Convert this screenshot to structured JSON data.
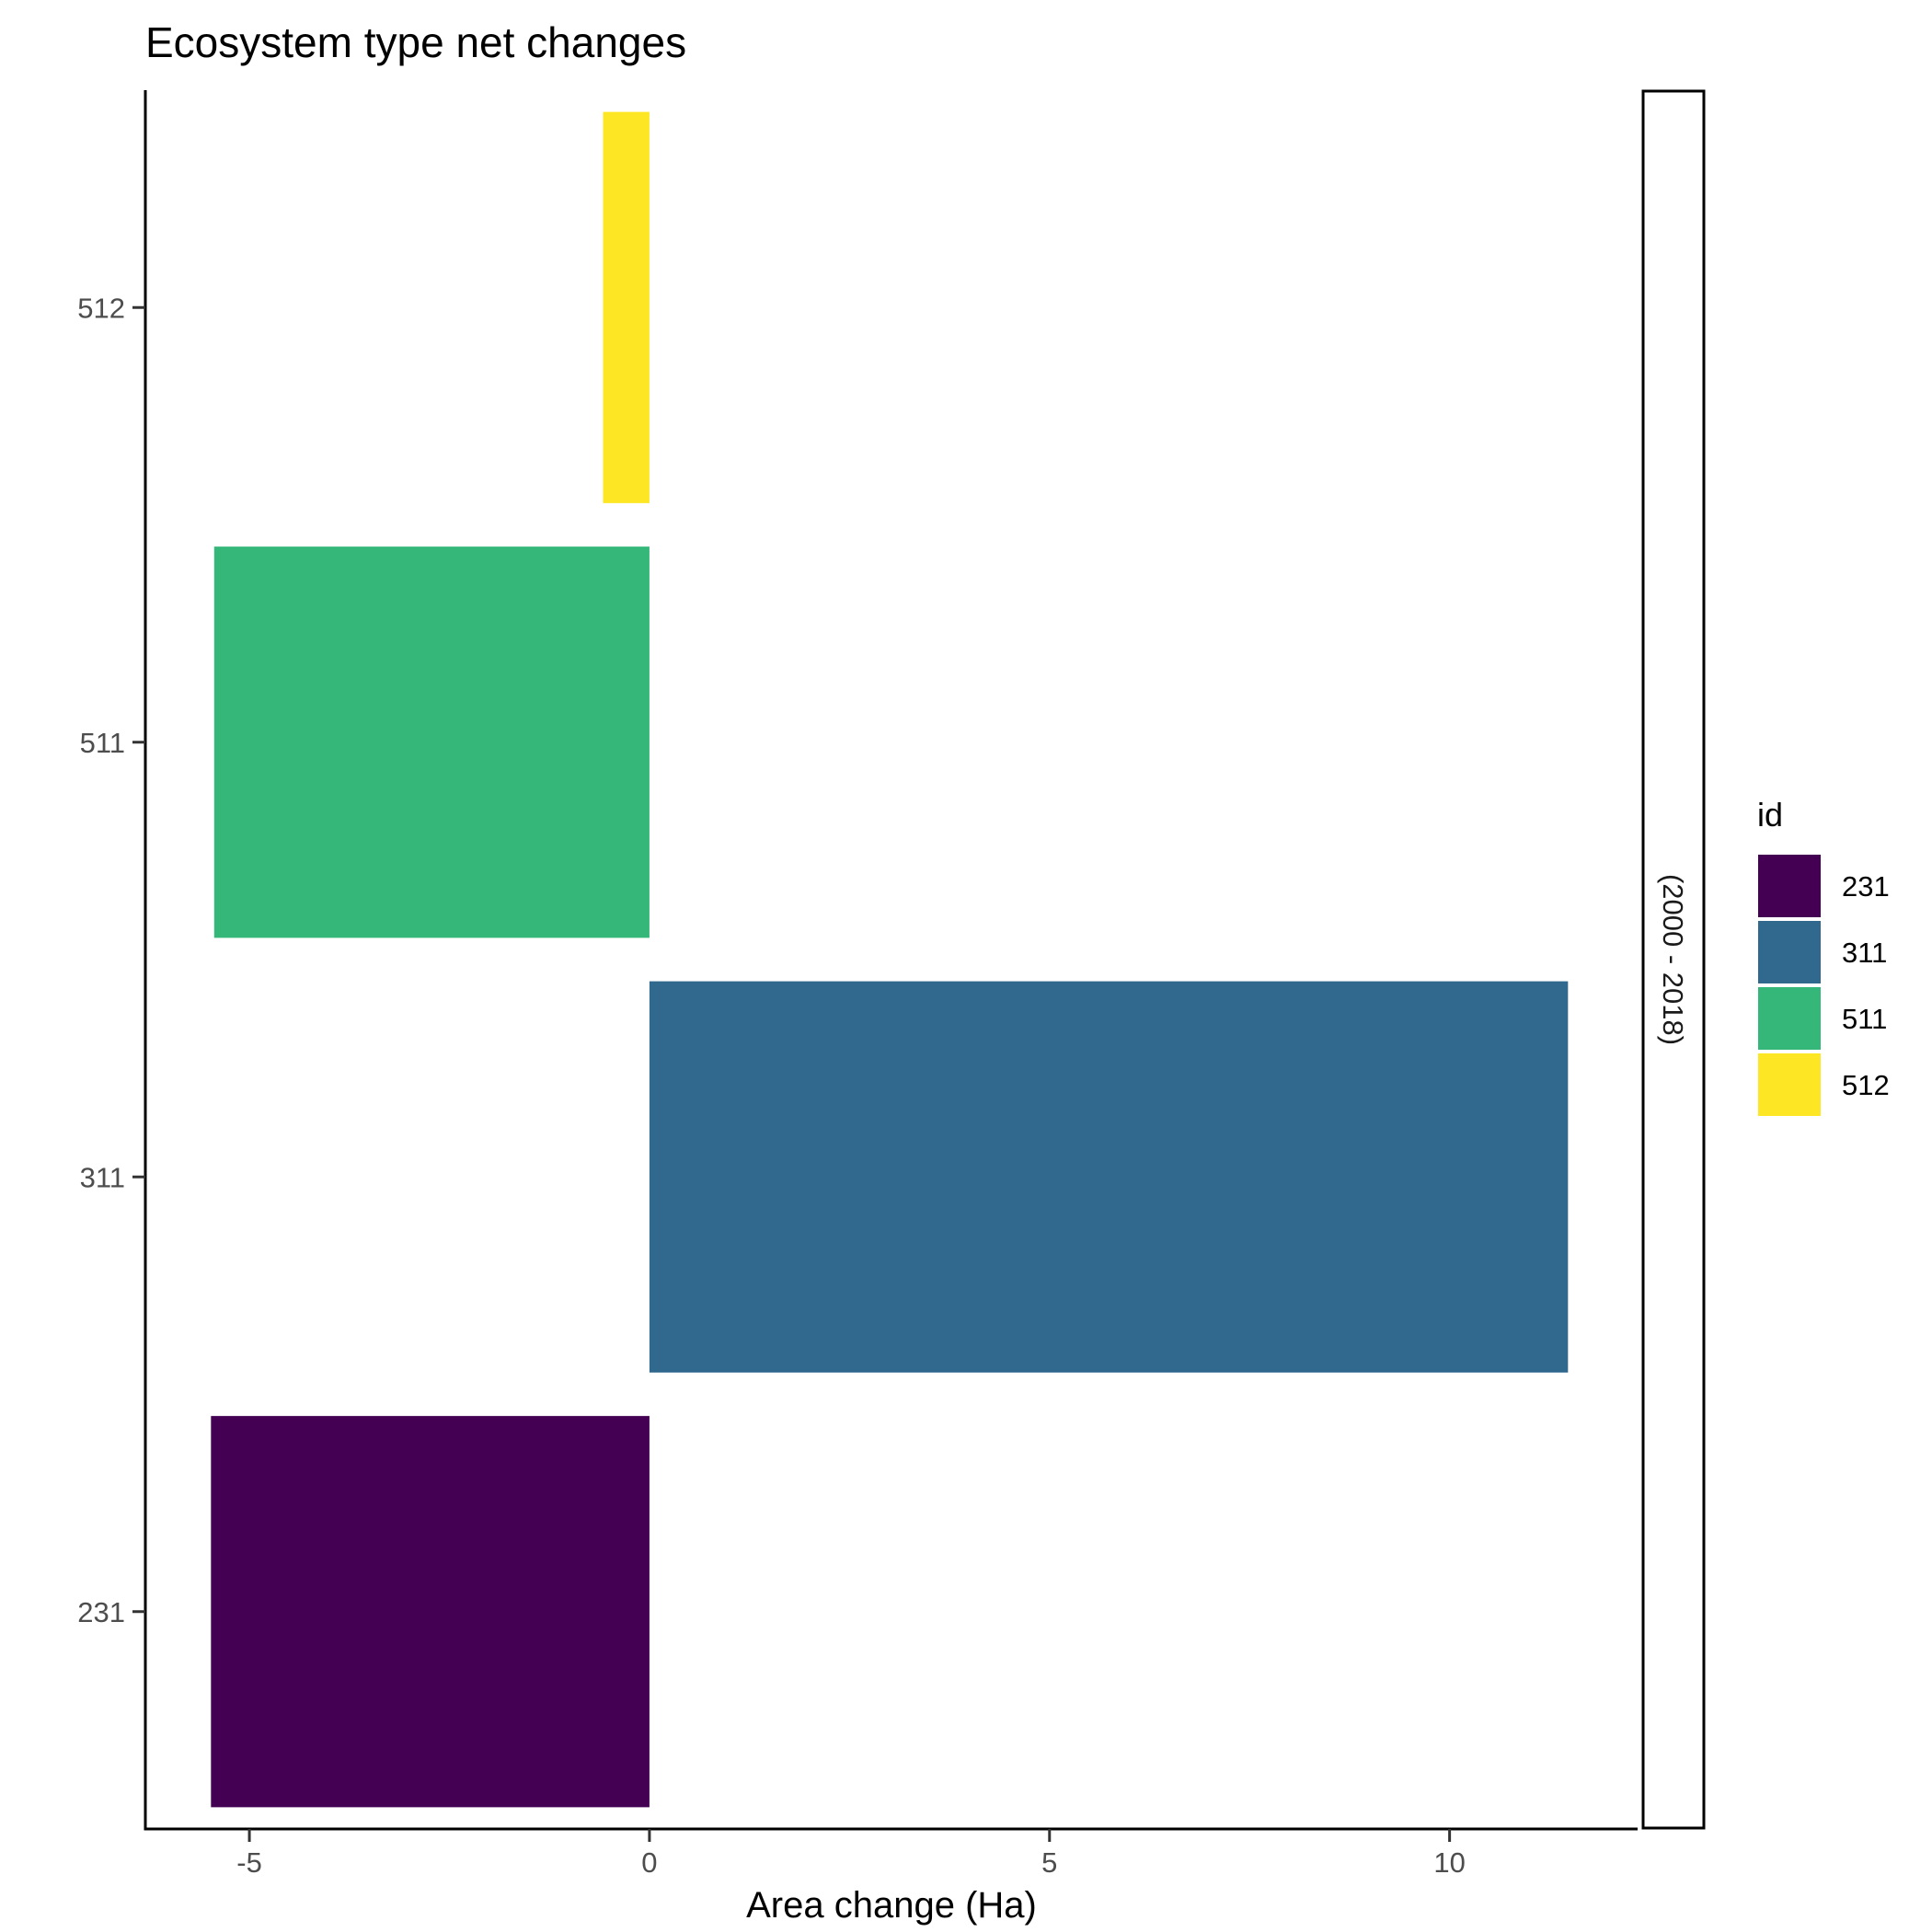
{
  "chart_data": {
    "type": "bar",
    "orientation": "horizontal",
    "title": "Ecosystem type net changes",
    "xlabel": "Area change (Ha)",
    "ylabel": "",
    "categories": [
      "231",
      "311",
      "511",
      "512"
    ],
    "values": [
      -5.48,
      11.48,
      -5.44,
      -0.58
    ],
    "colors": [
      "#440154",
      "#31688e",
      "#35b779",
      "#fde725"
    ],
    "xlim": [
      -6.3,
      12.35
    ],
    "xticks": [
      -5,
      0,
      5,
      10
    ],
    "facet_label": "(2000 - 2018)",
    "legend": {
      "title": "id",
      "position": "right",
      "entries": [
        "231",
        "311",
        "511",
        "512"
      ]
    },
    "grid": false
  }
}
